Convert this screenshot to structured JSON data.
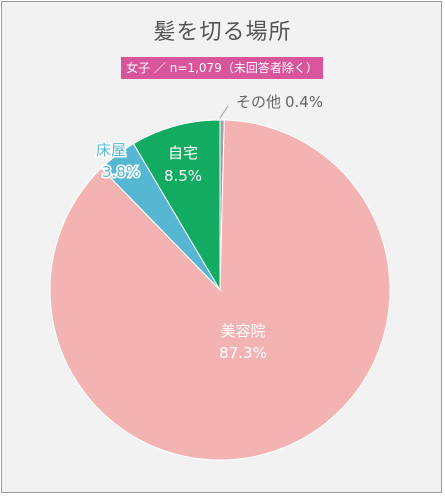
{
  "title": "髪を切る場所",
  "subtitle": "女子 ／ n=1,079（未回答者除く）",
  "colors": {
    "background": "#f2f2f2",
    "subtitle_bg": "#d9559b",
    "salon": "#f4b3b3",
    "home": "#13aa62",
    "barber": "#55b7d1",
    "other": "#9aa0a3"
  },
  "chart_data": {
    "type": "pie",
    "title": "髪を切る場所",
    "subtitle": "女子 ／ n=1,079（未回答者除く）",
    "slices": [
      {
        "label": "美容院",
        "value": 87.3,
        "value_label": "87.3%",
        "color": "#f4b3b3"
      },
      {
        "label": "床屋",
        "value": 3.8,
        "value_label": "3.8%",
        "color": "#55b7d1"
      },
      {
        "label": "自宅",
        "value": 8.5,
        "value_label": "8.5%",
        "color": "#13aa62"
      },
      {
        "label": "その他",
        "value": 0.4,
        "value_label": "0.4%",
        "color": "#9aa0a3"
      }
    ],
    "start": "12 o'clock",
    "direction": "clockwise",
    "legend": "none"
  }
}
